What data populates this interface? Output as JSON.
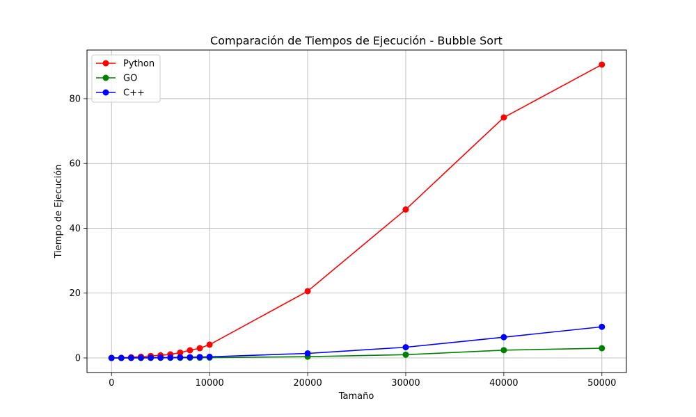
{
  "chart_data": {
    "type": "line",
    "title": "Comparación de Tiempos de Ejecución  - Bubble Sort",
    "xlabel": "Tamaño",
    "ylabel": "Tiempo de Ejecución",
    "x": [
      0,
      1000,
      2000,
      3000,
      4000,
      5000,
      6000,
      7000,
      8000,
      9000,
      10000,
      20000,
      30000,
      40000,
      50000
    ],
    "series": [
      {
        "name": "Python",
        "color": "#ff0000",
        "values": [
          0,
          0.03,
          0.2,
          0.38,
          0.6,
          0.8,
          1.1,
          1.65,
          2.35,
          3.0,
          4.1,
          20.6,
          45.8,
          74.2,
          90.5
        ]
      },
      {
        "name": "GO",
        "color": "#008000",
        "values": [
          0,
          0,
          0.01,
          0.01,
          0.02,
          0.03,
          0.04,
          0.05,
          0.07,
          0.08,
          0.1,
          0.4,
          1.0,
          2.4,
          3.0
        ]
      },
      {
        "name": "C++",
        "color": "#0000ff",
        "values": [
          0,
          0,
          0.02,
          0.04,
          0.06,
          0.1,
          0.13,
          0.17,
          0.22,
          0.28,
          0.35,
          1.4,
          3.3,
          6.4,
          9.6
        ]
      }
    ],
    "xlim": [
      -2500,
      52500
    ],
    "ylim": [
      -4.5,
      95.0
    ],
    "xticks": [
      0,
      10000,
      20000,
      30000,
      40000,
      50000
    ],
    "yticks": [
      0,
      20,
      40,
      60,
      80
    ],
    "grid": true,
    "legend_position": "top-left"
  }
}
